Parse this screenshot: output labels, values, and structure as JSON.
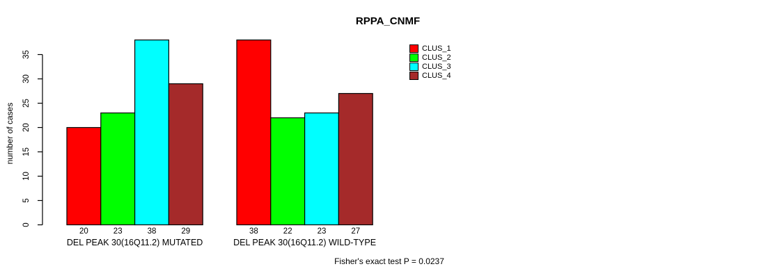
{
  "chart_data": {
    "type": "bar",
    "title": "RPPA_CNMF",
    "ylabel": "number of cases",
    "xlabel": "",
    "annotation": "Fisher's exact test P = 0.0237",
    "yticks": [
      0,
      5,
      10,
      15,
      20,
      25,
      30,
      35
    ],
    "ylim": [
      0,
      38
    ],
    "grid": false,
    "legend_position": "right",
    "bar_value_labels_shown": true,
    "series": [
      {
        "name": "CLUS_1",
        "color": "#FF0000"
      },
      {
        "name": "CLUS_2",
        "color": "#00FF00"
      },
      {
        "name": "CLUS_3",
        "color": "#00FFFF"
      },
      {
        "name": "CLUS_4",
        "color": "#A52A2A"
      }
    ],
    "groups": [
      {
        "label": "DEL PEAK 30(16Q11.2) MUTATED",
        "values": [
          20,
          23,
          38,
          29
        ]
      },
      {
        "label": "DEL PEAK 30(16Q11.2) WILD-TYPE",
        "values": [
          38,
          22,
          23,
          27
        ]
      }
    ]
  }
}
